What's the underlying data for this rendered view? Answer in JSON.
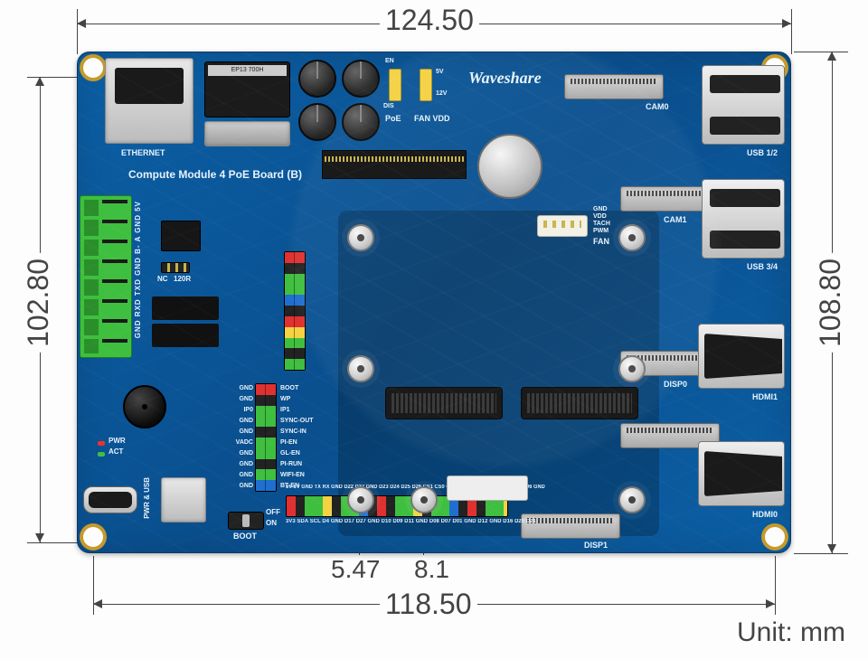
{
  "unit_label": "Unit: mm",
  "dims": {
    "top_width": "124.50",
    "bottom_width": "118.50",
    "left_height": "102.80",
    "right_height": "108.80",
    "hole_a": "5.47",
    "hole_b": "8.1"
  },
  "board": {
    "title": "Compute Module 4 PoE Board (B)",
    "base_color": "#0b5fa5",
    "silkscreen_color": "#ffffff",
    "labels": {
      "ethernet": "ETHERNET",
      "poe": "PoE",
      "fan_vdd": "FAN VDD",
      "en": "EN",
      "dis": "DIS",
      "v5": "5V",
      "v12": "12V",
      "cam0": "CAM0",
      "cam1": "CAM1",
      "usb12": "USB 1/2",
      "usb34": "USB 3/4",
      "disp0": "DISP0",
      "disp1": "DISP1",
      "hdmi0": "HDMI0",
      "hdmi1": "HDMI1",
      "fan": "FAN",
      "fan_pins": "GND\nVDD\nTACH\nPWM",
      "boot": "BOOT",
      "off": "OFF",
      "on": "ON",
      "pwr_usb": "PWR & USB",
      "pwr": "PWR",
      "act": "ACT",
      "nc": "NC",
      "r120": "120R",
      "terminal": "GND RXD TXD GND B-  A  GND 5V"
    },
    "gpio_left_pairs": [
      [
        "GND",
        "BOOT"
      ],
      [
        "GND",
        "WP"
      ],
      [
        "IP0",
        "IP1"
      ],
      [
        "GND",
        "SYNC-OUT"
      ],
      [
        "GND",
        "SYNC-IN"
      ],
      [
        "VADC",
        "PI-EN"
      ],
      [
        "GND",
        "GL-EN"
      ],
      [
        "GND",
        "PI-RUN"
      ],
      [
        "GND",
        "WIFI-EN"
      ],
      [
        "GND",
        "BT-EN"
      ]
    ],
    "gpio_top_row": "5V 5V GND  TX  RX  GND D22 D27 GND D23 D24 D25 D26  CS1 CS0 CLK GND MOSI MISO D04  D05  D06 GND",
    "gpio_bottom_row": "3V3 SDA SCL  D4  GND D17 D27 GND D10 D09 D11 GND D08 D07 D01 GND D12 GND D16 D20 D21",
    "header_colors": {
      "strip1_rows": [
        "#e03030",
        "#222",
        "#3fbf3f",
        "#3fbf3f",
        "#1f6fd1",
        "#222",
        "#e03030",
        "#f4d242",
        "#3fbf3f",
        "#222",
        "#3fbf3f"
      ],
      "strip2_rows": [
        "#e03030",
        "#222",
        "#3fbf3f",
        "#3fbf3f",
        "#222",
        "#3fbf3f",
        "#3fbf3f",
        "#222",
        "#3fbf3f",
        "#1f6fd1"
      ]
    }
  }
}
